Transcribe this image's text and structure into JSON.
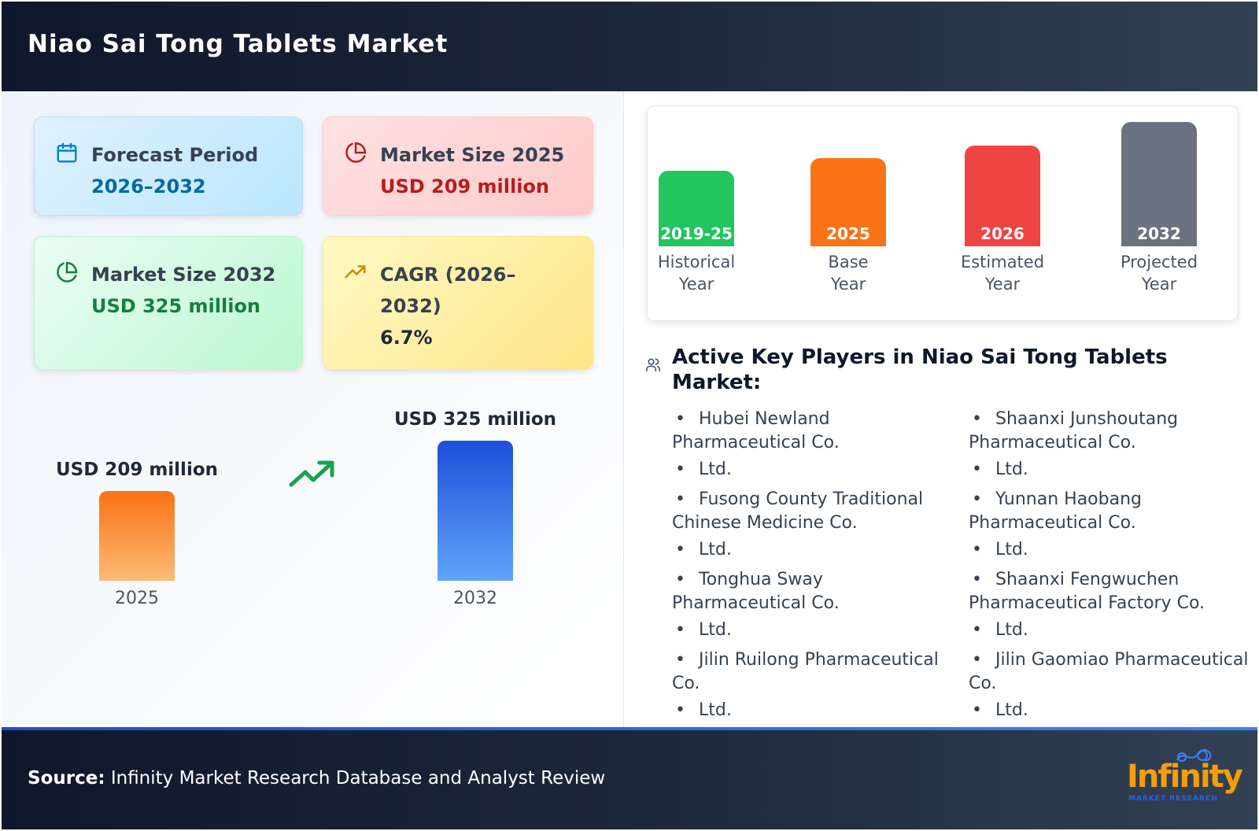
{
  "header": {
    "title": "Niao Sai Tong Tablets Market"
  },
  "stats": {
    "forecast": {
      "label": "Forecast Period",
      "value": "2026–2032",
      "icon": "calendar-icon"
    },
    "size_2025": {
      "label": "Market Size 2025",
      "value": "USD 209 million",
      "icon": "pie-chart-icon"
    },
    "size_2032": {
      "label": "Market Size 2032",
      "value": "USD 325 million",
      "icon": "pie-chart-icon"
    },
    "cagr": {
      "label": "CAGR (2026–2032)",
      "value": "6.7%",
      "icon": "trending-up-icon"
    }
  },
  "chart_data": [
    {
      "type": "bar",
      "categories": [
        "2025",
        "2032"
      ],
      "values": [
        209,
        325
      ],
      "value_labels": [
        "USD 209 million",
        "USD 325 million"
      ],
      "unit": "USD million",
      "colors": [
        "#f97316",
        "#2563eb"
      ]
    },
    {
      "type": "bar",
      "categories": [
        "2019-25",
        "2025",
        "2026",
        "2032"
      ],
      "labels": [
        "Historical Year",
        "Base Year",
        "Estimated Year",
        "Projected Year"
      ],
      "colors": [
        "#22c55e",
        "#f97316",
        "#ef4444",
        "#6b7280"
      ]
    }
  ],
  "players": {
    "title": "Active Key Players in Niao Sai Tong Tablets Market:",
    "icon": "users-icon",
    "col_a": [
      {
        "name": "Hubei Newland Pharmaceutical Co.",
        "tail": "Ltd."
      },
      {
        "name": "Fusong County Traditional Chinese Medicine Co.",
        "tail": "Ltd."
      },
      {
        "name": "Tonghua Sway Pharmaceutical Co.",
        "tail": "Ltd."
      },
      {
        "name": "Jilin Ruilong Pharmaceutical Co.",
        "tail": "Ltd."
      }
    ],
    "col_b": [
      {
        "name": "Shaanxi Junshoutang Pharmaceutical Co.",
        "tail": "Ltd."
      },
      {
        "name": "Yunnan Haobang Pharmaceutical Co.",
        "tail": "Ltd."
      },
      {
        "name": "Shaanxi Fengwuchen Pharmaceutical Factory Co.",
        "tail": "Ltd."
      },
      {
        "name": "Jilin Gaomiao Pharmaceutical Co.",
        "tail": "Ltd."
      }
    ]
  },
  "footer": {
    "source_label": "Source:",
    "source_text": "Infinity Market Research Database and Analyst Review",
    "logo_word": "Infinity",
    "logo_sub": "MARKET RESEARCH"
  },
  "colors": {
    "header_bg": "#0f172a",
    "accent_blue": "#1d4ed8",
    "logo_orange": "#f59e0b"
  }
}
